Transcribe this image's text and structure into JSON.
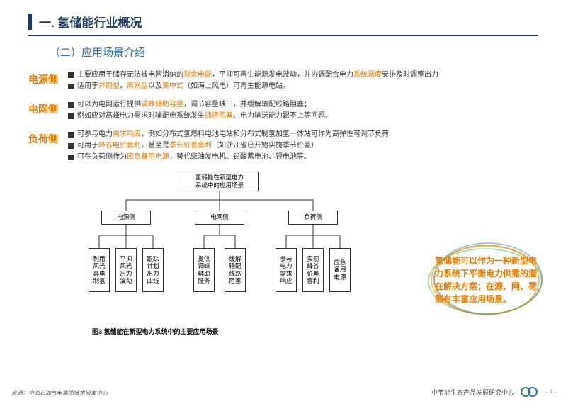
{
  "title": "一. 氢储能行业概况",
  "subtitle": "（二）应用场景介绍",
  "sections": [
    {
      "label": "电源侧",
      "bullets": [
        {
          "pre": "主要应用于储存无法被电网消纳的",
          "hl1": "剩余电能",
          "mid1": "，平抑可再生能源发电波动，并协调配合电力",
          "hl2": "系统调度",
          "post": "安排及时调整出力"
        },
        {
          "pre": "适用于",
          "hl1": "并网型",
          "mid1": "、",
          "hl2": "离网型",
          "mid2": "以及",
          "hl3": "集中式",
          "post": "（如海上风电）可再生能源电站。"
        }
      ]
    },
    {
      "label": "电网侧",
      "bullets": [
        {
          "pre": "可以为电网运行提供",
          "hl1": "调峰辅助容量",
          "post": "，调节容量缺口，并缓解输配线路阻塞；"
        },
        {
          "pre": "例如应对高峰电力需求时输配电系统发生",
          "hl1": "拥挤阻塞",
          "post": "、电力输送能力跟不上等问题。"
        }
      ]
    },
    {
      "label": "负荷侧",
      "bullets": [
        {
          "pre": "可参与电力",
          "hl1": "需求响应",
          "post": "，例如分布式氢燃料电池电站和分布式制氢加氢一体站可作为高弹性可调节负荷"
        },
        {
          "pre": "可用于",
          "hl1": "峰谷电价套利",
          "mid1": "，甚至是",
          "hl2": "季节价差套利",
          "post": "（如浙江省已开始实施季节价差）"
        },
        {
          "pre": "可在负荷侧作为",
          "hl1": "应急备用电源",
          "post": "，替代柴油发电机、铅酸蓄电池、锂电池等。"
        }
      ]
    }
  ],
  "diagram": {
    "root": "氢储能在新型电力\n系统中的应用场景",
    "level1": [
      "电源侧",
      "电网侧",
      "负荷侧"
    ],
    "leaves": [
      [
        "利用\n风光\n弃电\n制氢",
        "平抑\n风光\n出力\n波动",
        "跟踪\n计划\n出力\n曲线"
      ],
      [
        "提供\n调峰\n辅助\n服务",
        "缓解\n输配\n线路\n阻塞"
      ],
      [
        "参与\n电力\n需求\n响应",
        "实现\n峰谷\n价差\n套利",
        "应急\n备用\n电源"
      ]
    ],
    "caption": "图3 氢储能在新型电力系统中的主要应用场景"
  },
  "callout": "氢储能可以作为一种新型电力系统下平衡电力供需的潜在解决方案；在源、网、荷侧有丰富应用场景。",
  "source": "来源：中海石油气电集团技术研发中心",
  "footer": "中节能生态产品发展研究中心",
  "page": "- 4 -",
  "colors": {
    "accent": "#1e3a5f",
    "subtitle": "#2a6fb5",
    "highlight": "#e07b00"
  }
}
